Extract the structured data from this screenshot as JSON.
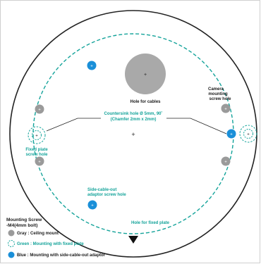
{
  "labels": {
    "hole_for_cables": "Hole for cables",
    "camera_mounting_1": "Camera",
    "camera_mounting_2": "mounting",
    "camera_mounting_3": "screw hole",
    "countersink_1": "Countersink hole Ø 5mm, 90˚",
    "countersink_2": "(Chamfer 2mm x 2mm)",
    "fixed_plate_screw_1": "Fixed plate",
    "fixed_plate_screw_2": "screw hole",
    "side_cable_1": "Side-cable-out",
    "side_cable_2": "adaptor screw hole",
    "hole_for_fixed_plate": "Hole for fixed plate"
  },
  "legend": {
    "title_1": "Mounting Screw",
    "title_2": "-M4(4mm bolt)",
    "gray": "Gray : Ceiling mount",
    "green": "Green : Mounting with fixed plate",
    "blue": "Blue : Mounting with side-cable-out adaptor"
  },
  "colors": {
    "gray": "#9a9a9a",
    "green": "#14a39a",
    "blue": "#1a8fd8",
    "outline": "#222222"
  }
}
